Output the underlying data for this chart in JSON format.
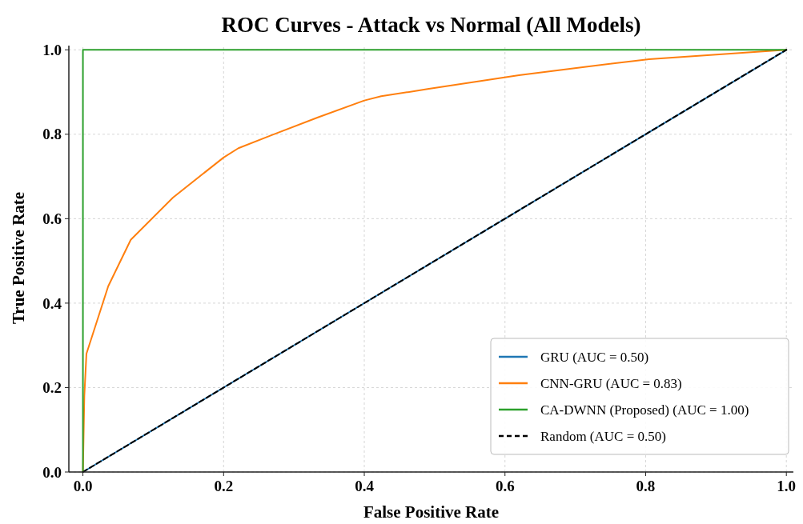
{
  "chart_data": {
    "type": "line",
    "title": "ROC Curves - Attack vs Normal (All Models)",
    "xlabel": "False Positive Rate",
    "ylabel": "True Positive Rate",
    "xlim": [
      -0.02,
      1.01
    ],
    "ylim": [
      0,
      1.01
    ],
    "xticks": [
      {
        "value": 0,
        "label": "0.0"
      },
      0.2,
      0.4,
      0.6,
      0.8,
      {
        "value": 1,
        "label": "1.0"
      }
    ],
    "yticks": [
      {
        "value": 0,
        "label": "0.0"
      },
      0.2,
      0.4,
      0.6,
      0.8,
      {
        "value": 1,
        "label": "1.0"
      }
    ],
    "grid": true,
    "legend": "bottom right",
    "marker": "none",
    "series": [
      {
        "name": "GRU (AUC = 0.50)",
        "color": "#1f77b4",
        "x": [
          0,
          1
        ],
        "values": [
          0,
          1
        ]
      },
      {
        "name": "CNN-GRU (AUC = 0.83)",
        "color": "#ff7f0e",
        "x": [
          0,
          0.002,
          0.005,
          0.036,
          0.068,
          0.128,
          0.2,
          0.221,
          0.267,
          0.334,
          0.4,
          0.424,
          0.49,
          0.62,
          0.715,
          0.805,
          1
        ],
        "values": [
          0,
          0.18,
          0.28,
          0.44,
          0.55,
          0.65,
          0.745,
          0.767,
          0.797,
          0.84,
          0.88,
          0.89,
          0.907,
          0.94,
          0.96,
          0.978,
          1
        ]
      },
      {
        "name": "CA-DWNN (Proposed) (AUC = 1.00)",
        "color": "#2ca02c",
        "x": [
          0,
          0,
          1
        ],
        "values": [
          0,
          1,
          1
        ]
      },
      {
        "name": "Random (AUC = 0.50)",
        "color": "#000000",
        "x": [
          0,
          1
        ],
        "values": [
          0,
          1
        ],
        "line_style": "dashed"
      }
    ]
  }
}
